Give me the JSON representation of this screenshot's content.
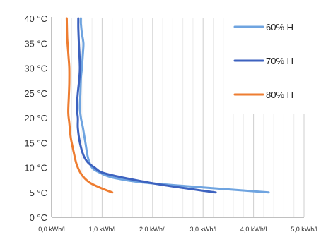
{
  "chart_data": {
    "type": "line",
    "title": "",
    "xlabel": "",
    "ylabel": "",
    "xlim": [
      0,
      5
    ],
    "ylim": [
      0,
      40
    ],
    "x_tick_labels": [
      "0,0 kWh/l",
      "1,0 kWh/l",
      "2,0 kWh/l",
      "3,0 kWh/l",
      "4,0 kWh/l",
      "5,0 kWh/l"
    ],
    "y_tick_labels": [
      "0 °C",
      "5 °C",
      "10 °C",
      "15 °C",
      "20 °C",
      "25 °C",
      "30 °C",
      "35 °C",
      "40 °C"
    ],
    "grid": "vertical",
    "legend_position": "right",
    "series": [
      {
        "name": "60% H",
        "color": "#6fa4e0",
        "points": [
          [
            4.3,
            5
          ],
          [
            3.0,
            6
          ],
          [
            1.8,
            7
          ],
          [
            1.2,
            8
          ],
          [
            0.95,
            9
          ],
          [
            0.8,
            10
          ],
          [
            0.72,
            12
          ],
          [
            0.67,
            15
          ],
          [
            0.62,
            18
          ],
          [
            0.58,
            20
          ],
          [
            0.56,
            22
          ],
          [
            0.57,
            25
          ],
          [
            0.58,
            28
          ],
          [
            0.6,
            30
          ],
          [
            0.62,
            33
          ],
          [
            0.63,
            35
          ],
          [
            0.6,
            37
          ],
          [
            0.58,
            39
          ],
          [
            0.58,
            40
          ]
        ]
      },
      {
        "name": "70% H",
        "color": "#3d62bf",
        "points": [
          [
            3.25,
            5
          ],
          [
            2.2,
            6.5
          ],
          [
            1.4,
            8
          ],
          [
            1.0,
            9
          ],
          [
            0.85,
            10
          ],
          [
            0.72,
            11
          ],
          [
            0.63,
            12.5
          ],
          [
            0.56,
            15
          ],
          [
            0.52,
            18
          ],
          [
            0.52,
            20
          ],
          [
            0.5,
            22
          ],
          [
            0.52,
            25
          ],
          [
            0.55,
            28
          ],
          [
            0.56,
            30
          ],
          [
            0.55,
            33
          ],
          [
            0.54,
            35
          ],
          [
            0.53,
            38
          ],
          [
            0.53,
            40
          ]
        ]
      },
      {
        "name": "80% H",
        "color": "#ee7d31",
        "points": [
          [
            1.2,
            5
          ],
          [
            0.95,
            6
          ],
          [
            0.75,
            7
          ],
          [
            0.6,
            8.5
          ],
          [
            0.5,
            10.5
          ],
          [
            0.44,
            13
          ],
          [
            0.38,
            16
          ],
          [
            0.35,
            19
          ],
          [
            0.33,
            21
          ],
          [
            0.34,
            24
          ],
          [
            0.35,
            27
          ],
          [
            0.35,
            30
          ],
          [
            0.33,
            33
          ],
          [
            0.31,
            36
          ],
          [
            0.3,
            40
          ]
        ]
      }
    ]
  }
}
